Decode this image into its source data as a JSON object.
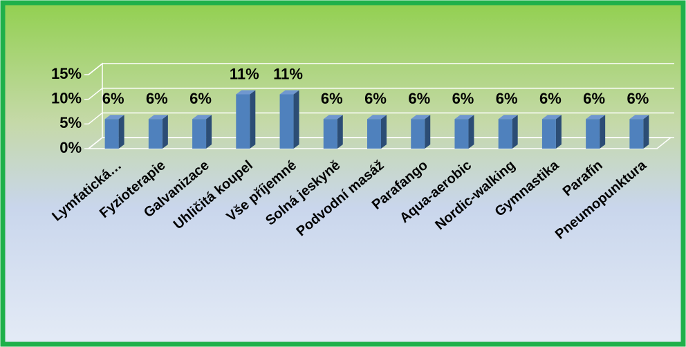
{
  "chart_data": {
    "type": "bar3d",
    "categories": [
      "Lymfatická…",
      "Fyzioterapie",
      "Galvanizace",
      "Uhličitá koupel",
      "Vše příjemné",
      "Solná jeskyně",
      "Podvodní masáž",
      "Parafango",
      "Aqua-aerobic",
      "Nordic-walking",
      "Gymnastika",
      "Parafín",
      "Pneumopunktura"
    ],
    "values": [
      6,
      6,
      6,
      11,
      11,
      6,
      6,
      6,
      6,
      6,
      6,
      6,
      6
    ],
    "value_labels": [
      "6%",
      "6%",
      "6%",
      "11%",
      "11%",
      "6%",
      "6%",
      "6%",
      "6%",
      "6%",
      "6%",
      "6%",
      "6%"
    ],
    "color": "#4f81bd",
    "ylim": [
      0,
      15
    ],
    "yticks": [
      {
        "value": 0,
        "label": "0%"
      },
      {
        "value": 5,
        "label": "5%"
      },
      {
        "value": 10,
        "label": "10%"
      },
      {
        "value": 15,
        "label": "15%"
      }
    ],
    "grid": true
  }
}
